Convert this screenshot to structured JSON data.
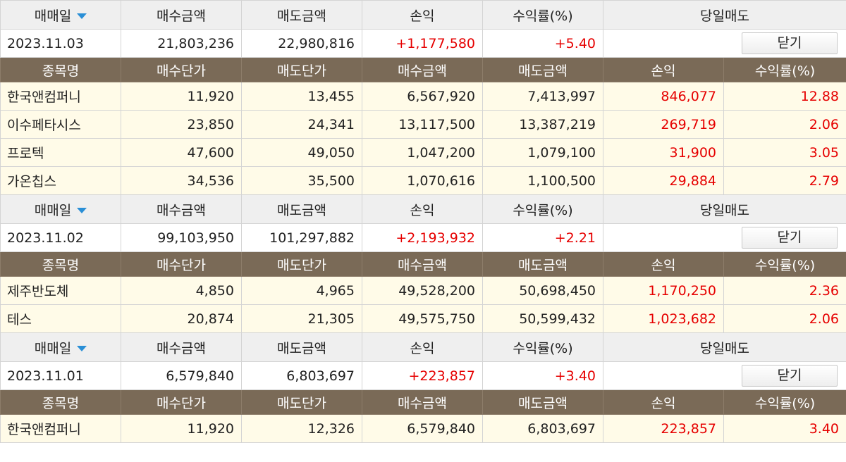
{
  "header_labels": {
    "date": "매매일",
    "buy_amount": "매수금액",
    "sell_amount": "매도금액",
    "profit": "손익",
    "rate": "수익률(%)",
    "day_trade": "당일매도"
  },
  "column_labels": {
    "name": "종목명",
    "buy_price": "매수단가",
    "sell_price": "매도단가",
    "buy_amount": "매수금액",
    "sell_amount": "매도금액",
    "profit": "손익",
    "rate": "수익률(%)"
  },
  "close_label": "닫기",
  "groups": [
    {
      "date": "2023.11.03",
      "buy_amount": "21,803,236",
      "sell_amount": "22,980,816",
      "profit": "+1,177,580",
      "rate": "+5.40",
      "items": [
        {
          "name": "한국앤컴퍼니",
          "buy_price": "11,920",
          "sell_price": "13,455",
          "buy_amount": "6,567,920",
          "sell_amount": "7,413,997",
          "profit": "846,077",
          "rate": "12.88"
        },
        {
          "name": "이수페타시스",
          "buy_price": "23,850",
          "sell_price": "24,341",
          "buy_amount": "13,117,500",
          "sell_amount": "13,387,219",
          "profit": "269,719",
          "rate": "2.06"
        },
        {
          "name": "프로텍",
          "buy_price": "47,600",
          "sell_price": "49,050",
          "buy_amount": "1,047,200",
          "sell_amount": "1,079,100",
          "profit": "31,900",
          "rate": "3.05"
        },
        {
          "name": "가온칩스",
          "buy_price": "34,536",
          "sell_price": "35,500",
          "buy_amount": "1,070,616",
          "sell_amount": "1,100,500",
          "profit": "29,884",
          "rate": "2.79"
        }
      ]
    },
    {
      "date": "2023.11.02",
      "buy_amount": "99,103,950",
      "sell_amount": "101,297,882",
      "profit": "+2,193,932",
      "rate": "+2.21",
      "items": [
        {
          "name": "제주반도체",
          "buy_price": "4,850",
          "sell_price": "4,965",
          "buy_amount": "49,528,200",
          "sell_amount": "50,698,450",
          "profit": "1,170,250",
          "rate": "2.36"
        },
        {
          "name": "테스",
          "buy_price": "20,874",
          "sell_price": "21,305",
          "buy_amount": "49,575,750",
          "sell_amount": "50,599,432",
          "profit": "1,023,682",
          "rate": "2.06"
        }
      ]
    },
    {
      "date": "2023.11.01",
      "buy_amount": "6,579,840",
      "sell_amount": "6,803,697",
      "profit": "+223,857",
      "rate": "+3.40",
      "items": [
        {
          "name": "한국앤컴퍼니",
          "buy_price": "11,920",
          "sell_price": "12,326",
          "buy_amount": "6,579,840",
          "sell_amount": "6,803,697",
          "profit": "223,857",
          "rate": "3.40"
        }
      ]
    }
  ],
  "colors": {
    "profit_red": "#e60000",
    "column_header_bg": "#7a6a57",
    "item_row_bg": "#fffbe8",
    "header_row_bg": "#efefef",
    "sort_arrow": "#2a8fd6"
  }
}
